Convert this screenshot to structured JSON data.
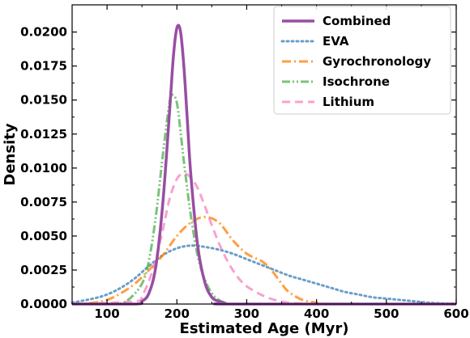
{
  "chart_data": {
    "type": "line",
    "title": "",
    "xlabel": "Estimated Age (Myr)",
    "ylabel": "Density",
    "xlim": [
      50,
      600
    ],
    "ylim": [
      0,
      0.022
    ],
    "x_ticks": [
      100,
      200,
      300,
      400,
      500,
      600
    ],
    "x_tick_labels": [
      "100",
      "200",
      "300",
      "400",
      "500",
      "600"
    ],
    "y_ticks": [
      0.0,
      0.0025,
      0.005,
      0.0075,
      0.01,
      0.0125,
      0.015,
      0.0175,
      0.02
    ],
    "y_tick_labels": [
      "0.0000",
      "0.0025",
      "0.0050",
      "0.0075",
      "0.0100",
      "0.0125",
      "0.0150",
      "0.0175",
      "0.0200"
    ],
    "grid": false,
    "legend_position": "top-right",
    "series": [
      {
        "name": "Combined",
        "color": "#984ea3",
        "dash": "solid",
        "x": [
          50,
          140,
          150,
          160,
          170,
          180,
          190,
          195,
          200,
          205,
          210,
          215,
          220,
          230,
          240,
          250,
          260,
          270,
          280,
          600
        ],
        "y": [
          0,
          0,
          0.0002,
          0.0008,
          0.0028,
          0.0075,
          0.0145,
          0.0182,
          0.0203,
          0.0201,
          0.0175,
          0.0135,
          0.0095,
          0.0042,
          0.0016,
          0.0005,
          0.0002,
          5e-05,
          0,
          0
        ]
      },
      {
        "name": "EVA",
        "color": "#377eb8",
        "dash": "dotted",
        "x": [
          50,
          80,
          100,
          120,
          140,
          160,
          180,
          200,
          220,
          240,
          260,
          280,
          300,
          320,
          340,
          360,
          380,
          400,
          420,
          440,
          460,
          480,
          500,
          520,
          540,
          560,
          580,
          600
        ],
        "y": [
          0.0001,
          0.0004,
          0.0007,
          0.0012,
          0.0019,
          0.0028,
          0.0036,
          0.0041,
          0.0043,
          0.0042,
          0.004,
          0.0037,
          0.0033,
          0.0029,
          0.0025,
          0.0021,
          0.0018,
          0.0015,
          0.0012,
          0.0009,
          0.0007,
          0.0005,
          0.0004,
          0.0003,
          0.0002,
          0.0001,
          5e-05,
          2e-05
        ]
      },
      {
        "name": "Gyrochronology",
        "color": "#ff7f00",
        "dash": "dashdot",
        "x": [
          50,
          80,
          100,
          120,
          140,
          160,
          180,
          200,
          220,
          240,
          260,
          280,
          300,
          320,
          330,
          340,
          350,
          360,
          380,
          400,
          420,
          600
        ],
        "y": [
          0,
          0.0001,
          0.0003,
          0.0008,
          0.0015,
          0.0025,
          0.0036,
          0.005,
          0.006,
          0.0064,
          0.006,
          0.0047,
          0.0037,
          0.0032,
          0.0028,
          0.0022,
          0.0015,
          0.0009,
          0.0003,
          0.0001,
          0,
          0
        ]
      },
      {
        "name": "Isochrone",
        "color": "#4daf4a",
        "dash": "dashdotdot",
        "x": [
          50,
          110,
          130,
          150,
          160,
          170,
          180,
          190,
          195,
          200,
          205,
          210,
          220,
          230,
          240,
          250,
          260,
          270,
          280,
          600
        ],
        "y": [
          0,
          0,
          0.0003,
          0.0015,
          0.0032,
          0.0065,
          0.011,
          0.015,
          0.0153,
          0.0148,
          0.0128,
          0.0105,
          0.0065,
          0.0035,
          0.0018,
          0.0008,
          0.0003,
          0.0001,
          0,
          0
        ]
      },
      {
        "name": "Lithium",
        "color": "#f781bf",
        "dash": "dashed",
        "x": [
          50,
          140,
          150,
          160,
          170,
          180,
          190,
          200,
          210,
          220,
          230,
          240,
          250,
          260,
          270,
          280,
          290,
          300,
          320,
          340,
          360,
          380,
          400,
          600
        ],
        "y": [
          0,
          0.0002,
          0.0006,
          0.0017,
          0.0033,
          0.0055,
          0.0078,
          0.0092,
          0.0096,
          0.0093,
          0.0085,
          0.0072,
          0.0058,
          0.0045,
          0.0034,
          0.0025,
          0.0018,
          0.0013,
          0.0007,
          0.0003,
          0.0001,
          3e-05,
          0,
          0
        ]
      }
    ]
  }
}
